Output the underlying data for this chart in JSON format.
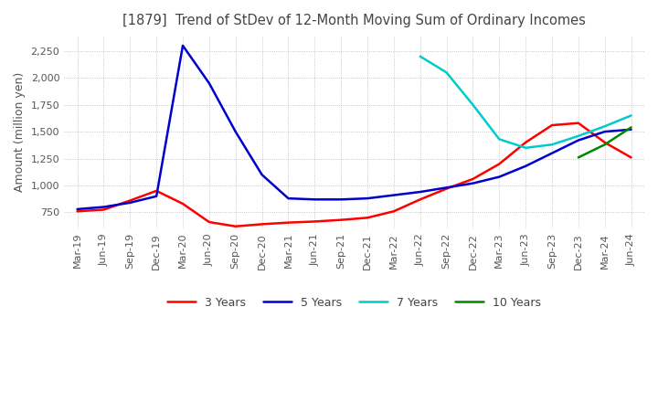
{
  "title": "[1879]  Trend of StDev of 12-Month Moving Sum of Ordinary Incomes",
  "ylabel": "Amount (million yen)",
  "background_color": "#ffffff",
  "grid_color": "#b0b0b0",
  "ylim": [
    600,
    2400
  ],
  "yticks": [
    750,
    1000,
    1250,
    1500,
    1750,
    2000,
    2250
  ],
  "x_labels": [
    "Mar-19",
    "Jun-19",
    "Sep-19",
    "Dec-19",
    "Mar-20",
    "Jun-20",
    "Sep-20",
    "Dec-20",
    "Mar-21",
    "Jun-21",
    "Sep-21",
    "Dec-21",
    "Mar-22",
    "Jun-22",
    "Sep-22",
    "Dec-22",
    "Mar-23",
    "Jun-23",
    "Sep-23",
    "Dec-23",
    "Mar-24",
    "Jun-24"
  ],
  "series": {
    "3 Years": {
      "color": "#ff0000",
      "data": [
        760,
        775,
        860,
        950,
        830,
        660,
        620,
        640,
        655,
        665,
        680,
        700,
        760,
        870,
        970,
        1060,
        1200,
        1400,
        1560,
        1580,
        1400,
        1260
      ]
    },
    "5 Years": {
      "color": "#0000cc",
      "data": [
        780,
        800,
        840,
        900,
        2300,
        1950,
        1500,
        1100,
        880,
        870,
        870,
        880,
        910,
        940,
        980,
        1020,
        1080,
        1180,
        1300,
        1420,
        1500,
        1520
      ]
    },
    "7 Years": {
      "color": "#00cccc",
      "data": [
        null,
        null,
        null,
        null,
        null,
        null,
        null,
        null,
        null,
        null,
        null,
        null,
        null,
        2200,
        2050,
        1750,
        1430,
        1350,
        1380,
        1460,
        1550,
        1650
      ]
    },
    "10 Years": {
      "color": "#008800",
      "data": [
        null,
        null,
        null,
        null,
        null,
        null,
        null,
        null,
        null,
        null,
        null,
        null,
        null,
        null,
        null,
        null,
        null,
        null,
        null,
        1260,
        1380,
        1540
      ]
    }
  }
}
